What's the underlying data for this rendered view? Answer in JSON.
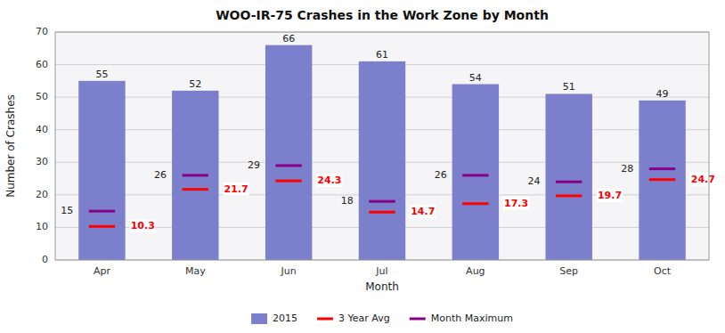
{
  "chart_data": {
    "type": "bar",
    "title": "WOO-IR-75  Crashes in the Work Zone by Month",
    "x_label": "Month",
    "y_label": "Number of Crashes",
    "categories": [
      "Apr",
      "May",
      "Jun",
      "Jul",
      "Aug",
      "Sep",
      "Oct"
    ],
    "series": [
      {
        "name": "2015",
        "type": "bar",
        "color": "#7b7fcc",
        "values": [
          55,
          52,
          66,
          61,
          54,
          51,
          49
        ]
      },
      {
        "name": "3 Year Avg",
        "type": "dash",
        "color": "#ff0000",
        "values": [
          10.3,
          21.7,
          24.3,
          14.7,
          17.3,
          19.7,
          24.7
        ]
      },
      {
        "name": "Month Maximum",
        "type": "dash",
        "color": "#880088",
        "values": [
          15,
          26,
          29,
          18,
          26,
          24,
          28
        ]
      }
    ],
    "ylim": [
      0,
      70
    ],
    "yticks": [
      0,
      10,
      20,
      30,
      40,
      50,
      60,
      70
    ],
    "grid": true,
    "legend": "bottom",
    "data_labels": true
  }
}
